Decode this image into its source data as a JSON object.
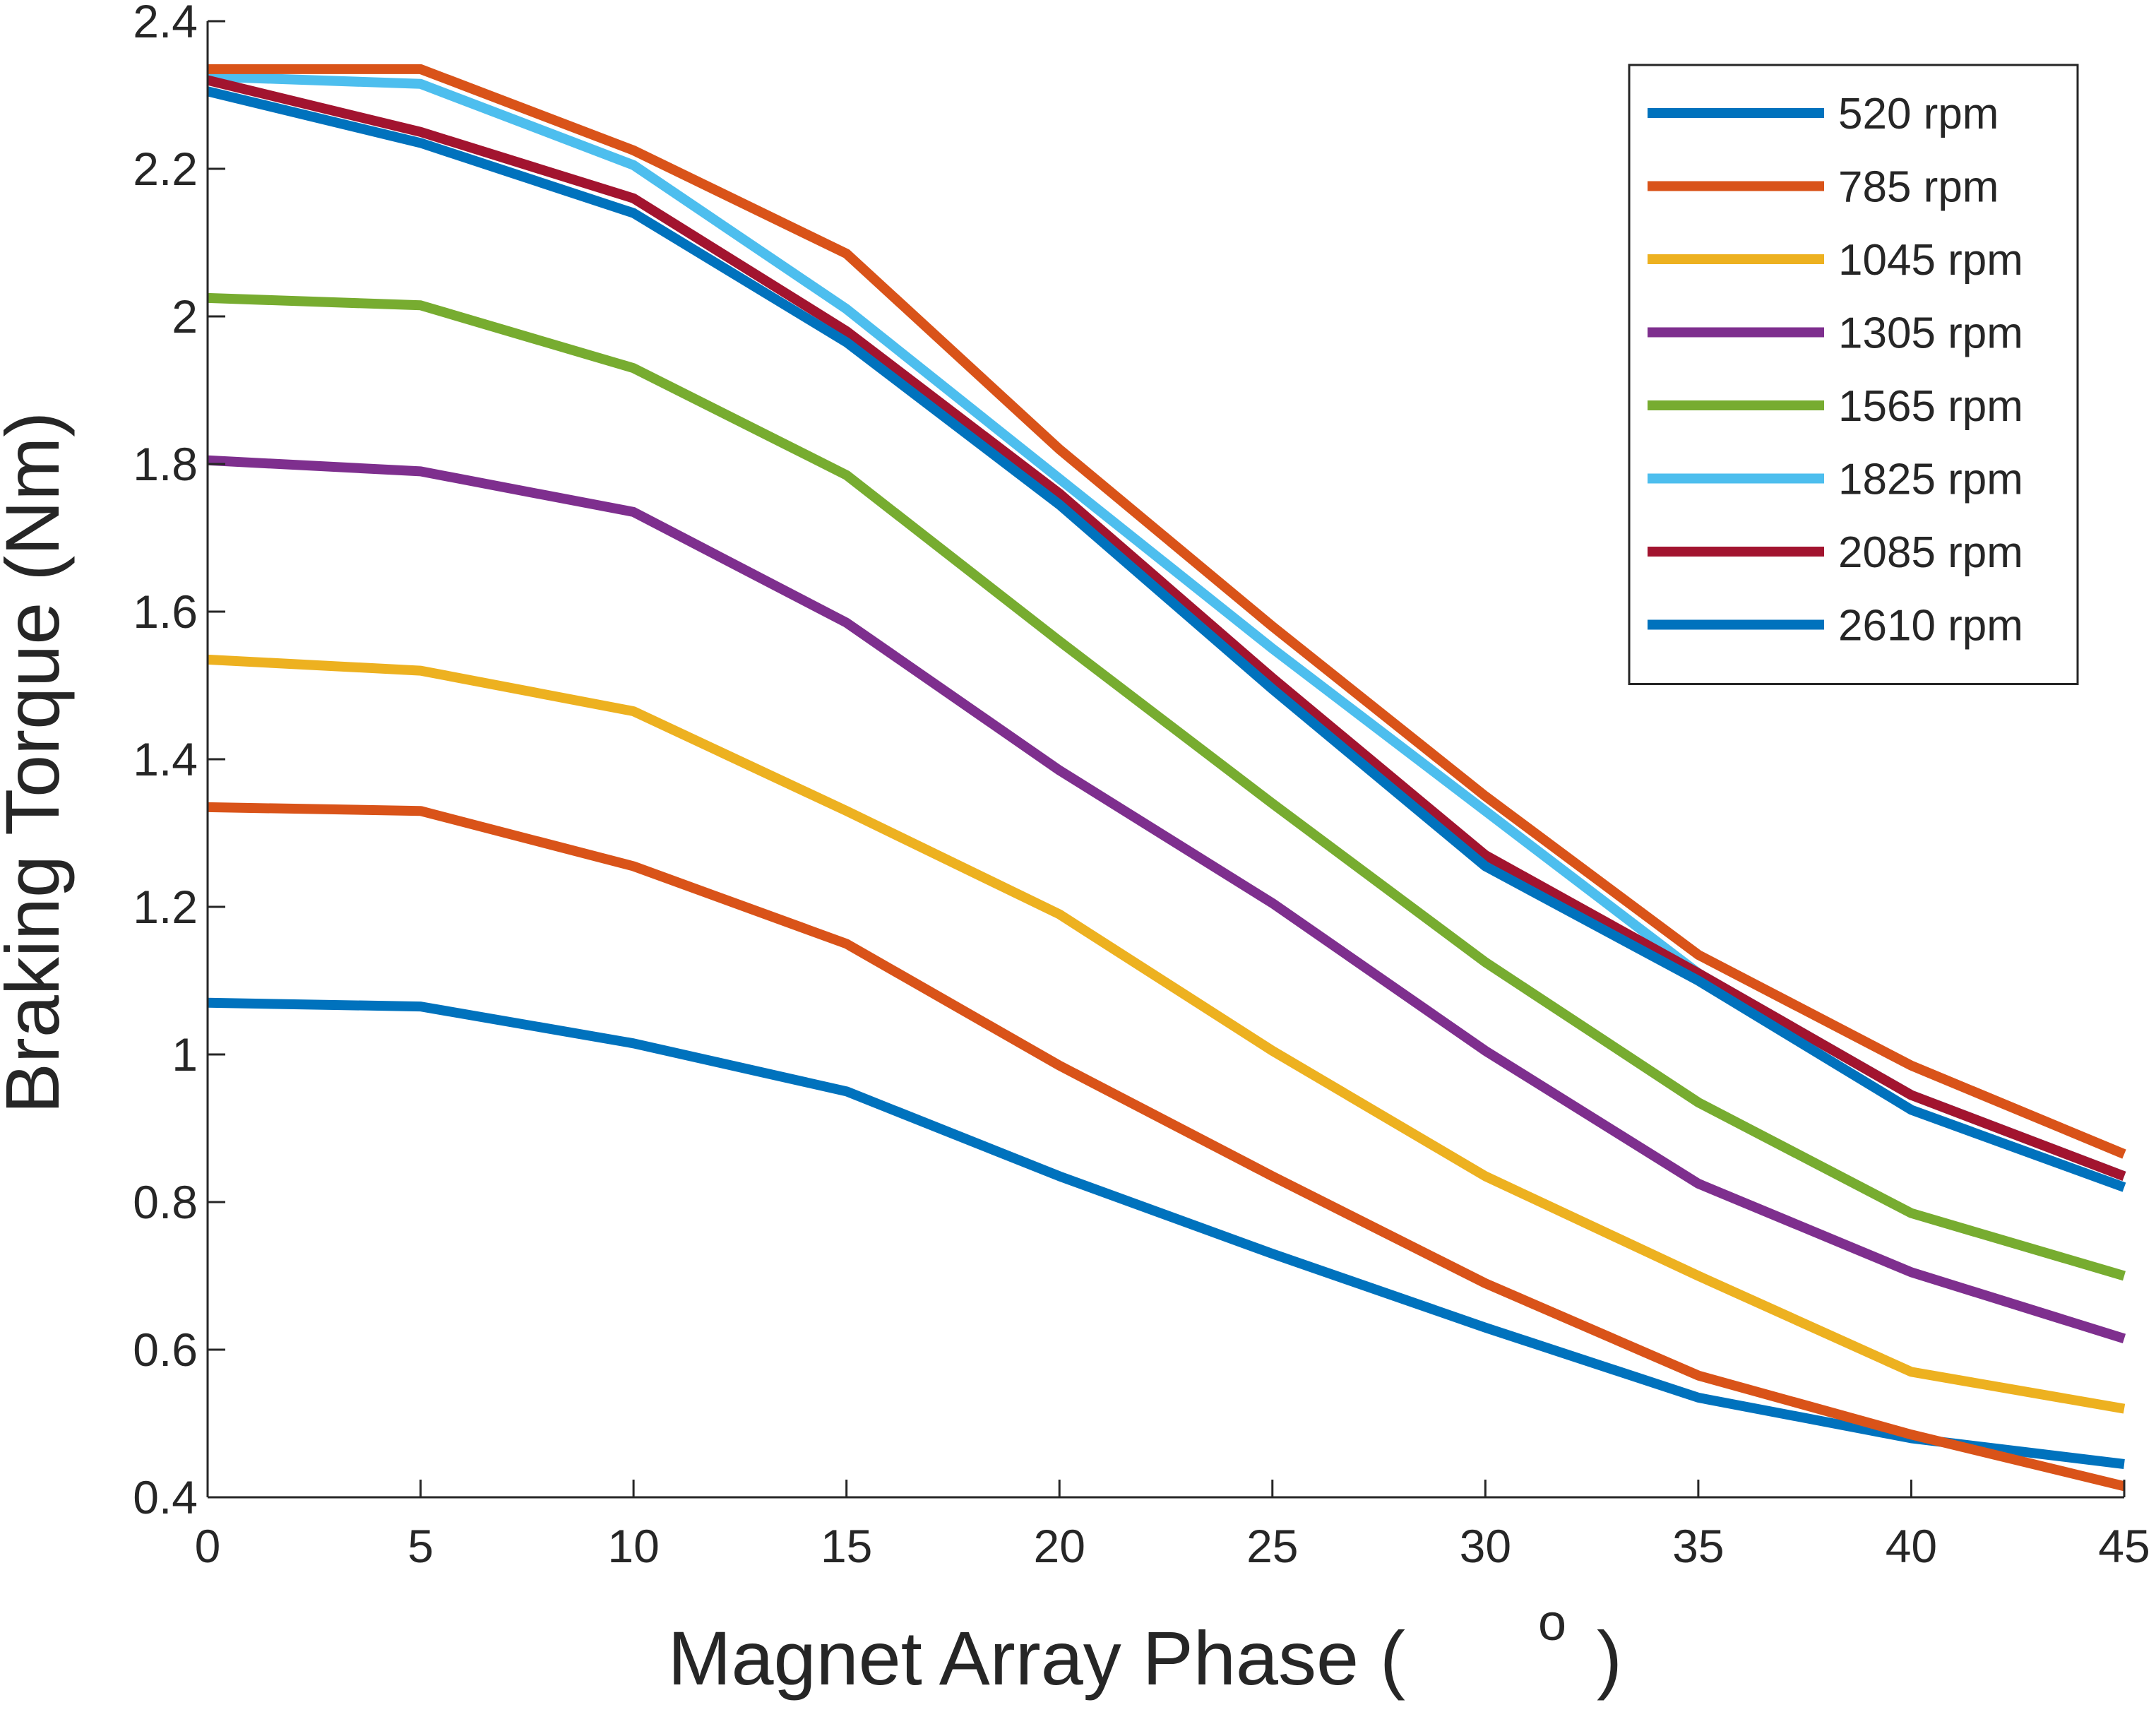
{
  "chart_data": {
    "type": "line",
    "xlabel": "Magnet Array Phase ( ",
    "xlabel_superscript": "o",
    "xlabel_close": ")",
    "ylabel": "Braking Torque (Nm)",
    "xlim": [
      0,
      45
    ],
    "ylim": [
      0.4,
      2.4
    ],
    "x_ticks": [
      "0",
      "5",
      "10",
      "15",
      "20",
      "25",
      "30",
      "35",
      "40",
      "45"
    ],
    "y_ticks": [
      "0.4",
      "0.6",
      "0.8",
      "1",
      "1.2",
      "1.4",
      "1.6",
      "1.8",
      "2",
      "2.2",
      "2.4"
    ],
    "grid": false,
    "legend_position": "top-right",
    "x": [
      0,
      5,
      10,
      15,
      20,
      25,
      30,
      35,
      40,
      45
    ],
    "series": [
      {
        "name": "520 rpm",
        "color": "#0072BD",
        "values": [
          1.07,
          1.065,
          1.015,
          0.95,
          0.835,
          0.73,
          0.63,
          0.535,
          0.48,
          0.445
        ]
      },
      {
        "name": "785 rpm",
        "color": "#D95319",
        "values": [
          1.335,
          1.33,
          1.255,
          1.15,
          0.985,
          0.835,
          0.69,
          0.565,
          0.485,
          0.415
        ]
      },
      {
        "name": "1045 rpm",
        "color": "#EDB120",
        "values": [
          1.535,
          1.52,
          1.465,
          1.33,
          1.19,
          1.005,
          0.835,
          0.7,
          0.57,
          0.52
        ]
      },
      {
        "name": "1305 rpm",
        "color": "#7E2F8E",
        "values": [
          1.805,
          1.79,
          1.735,
          1.585,
          1.385,
          1.205,
          1.005,
          0.825,
          0.705,
          0.615
        ]
      },
      {
        "name": "1565 rpm",
        "color": "#77AC30",
        "values": [
          2.025,
          2.015,
          1.93,
          1.785,
          1.56,
          1.34,
          1.125,
          0.935,
          0.785,
          0.7
        ]
      },
      {
        "name": "1825 rpm",
        "color": "#4DBEEE",
        "values": [
          2.325,
          2.315,
          2.205,
          2.01,
          1.78,
          1.55,
          1.33,
          1.11,
          0.945,
          0.835
        ]
      },
      {
        "name": "2085 rpm",
        "color": "#A2142F",
        "values": [
          2.32,
          2.25,
          2.16,
          1.98,
          1.76,
          1.51,
          1.27,
          1.11,
          0.945,
          0.835
        ]
      },
      {
        "name": "2610 rpm",
        "color": "#0072BD",
        "values": [
          2.305,
          2.235,
          2.14,
          1.965,
          1.745,
          1.495,
          1.255,
          1.1,
          0.925,
          0.82
        ]
      },
      {
        "name": "",
        "color": "#D95319",
        "values": [
          2.335,
          2.335,
          2.225,
          2.085,
          1.82,
          1.58,
          1.35,
          1.135,
          0.985,
          0.865
        ]
      }
    ]
  }
}
